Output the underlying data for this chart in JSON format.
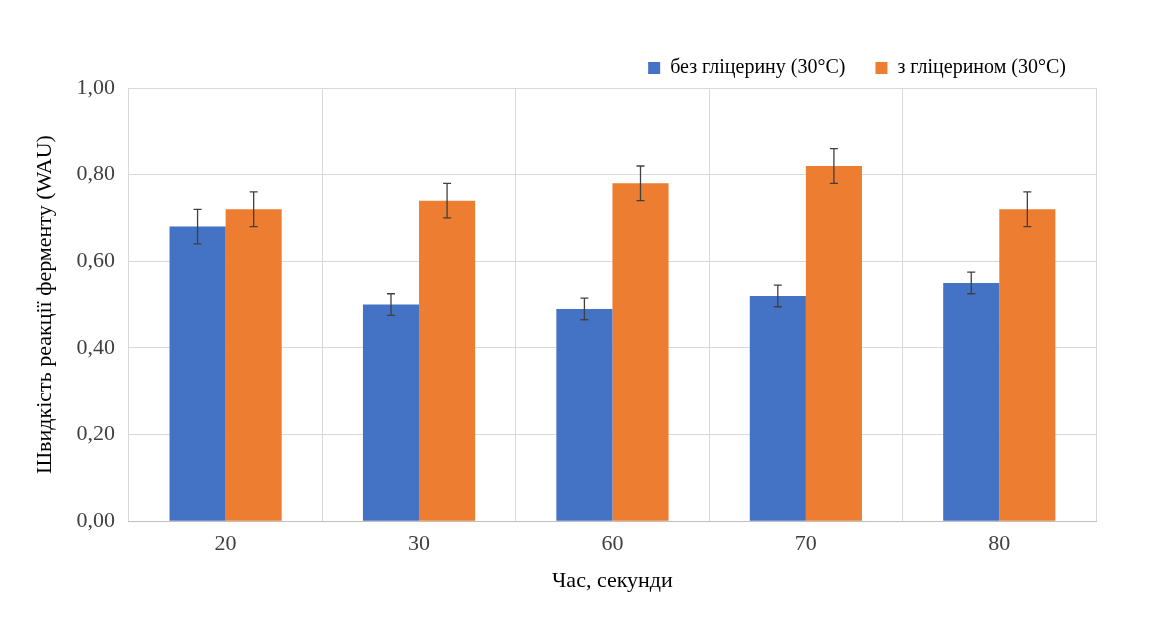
{
  "chart_data": {
    "type": "bar",
    "xlabel": "Час, секунди",
    "ylabel": "Швидкість реакції ферменту (WAU)",
    "categories": [
      "20",
      "30",
      "60",
      "70",
      "80"
    ],
    "series": [
      {
        "name": "без гліцерину (30°C)",
        "color": "#4472c4",
        "values": [
          0.68,
          0.5,
          0.49,
          0.52,
          0.55
        ],
        "errors": [
          0.04,
          0.025,
          0.025,
          0.025,
          0.025
        ]
      },
      {
        "name": "з гліцерином (30°C)",
        "color": "#ed7d31",
        "values": [
          0.72,
          0.74,
          0.78,
          0.82,
          0.72
        ],
        "errors": [
          0.04,
          0.04,
          0.04,
          0.04,
          0.04
        ]
      }
    ],
    "ylim": [
      0,
      1
    ],
    "yticks": [
      {
        "value": 0,
        "label": "0,00"
      },
      {
        "value": 0.2,
        "label": "0,20"
      },
      {
        "value": 0.4,
        "label": "0,40"
      },
      {
        "value": 0.6,
        "label": "0,60"
      },
      {
        "value": 0.8,
        "label": "0,80"
      },
      {
        "value": 1,
        "label": "1,00"
      }
    ],
    "grid": true,
    "legend": "top right"
  }
}
